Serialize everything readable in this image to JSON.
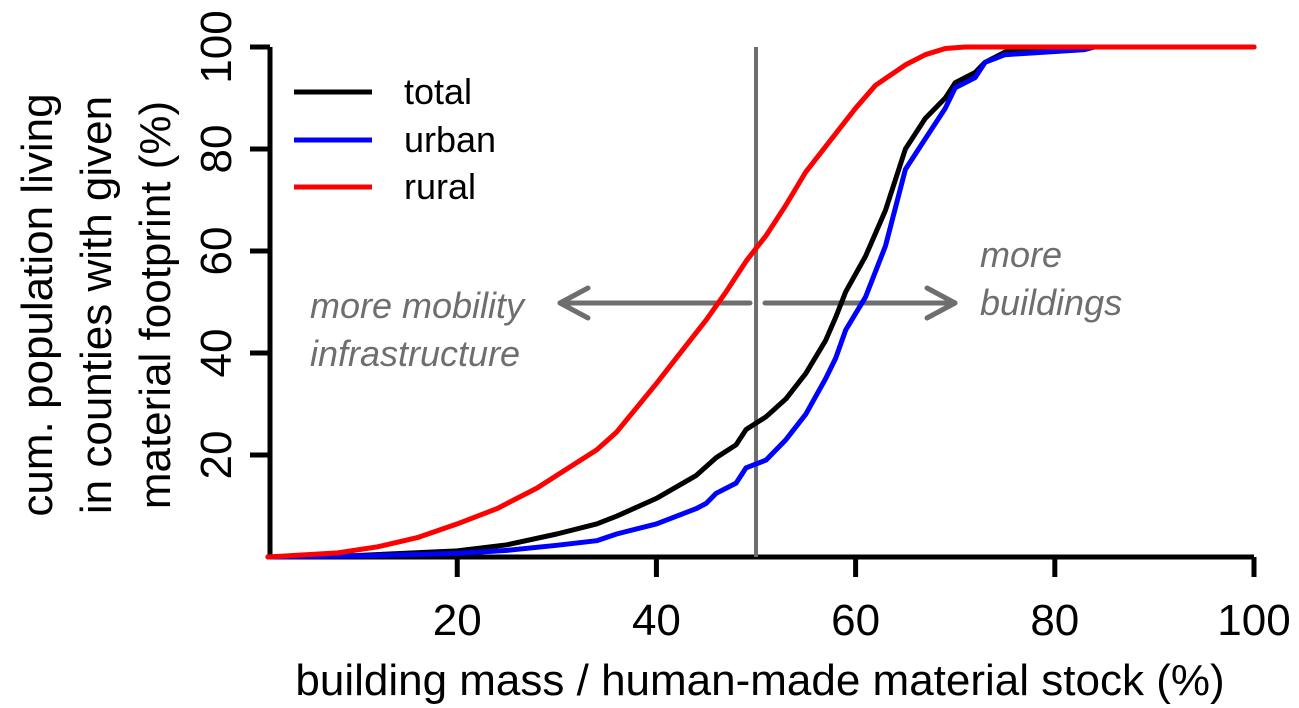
{
  "chart_data": {
    "type": "line",
    "xlabel": "building mass / human-made material stock (%)",
    "ylabel_lines": [
      "cum. population living",
      "in counties with given",
      "material footprint (%)"
    ],
    "xlim": [
      1,
      100
    ],
    "ylim": [
      0,
      100
    ],
    "x_ticks": [
      20,
      40,
      60,
      80,
      100
    ],
    "y_ticks": [
      20,
      40,
      60,
      80,
      100
    ],
    "grid": false,
    "legend_position": "top-left",
    "vline_x": 50,
    "annotations": {
      "left": [
        "more mobility",
        "infrastructure"
      ],
      "right": [
        "more",
        "buildings"
      ]
    },
    "series": [
      {
        "name": "total",
        "color": "#000000",
        "points": [
          [
            1,
            0
          ],
          [
            10,
            0.3
          ],
          [
            20,
            1.2
          ],
          [
            25,
            2.4
          ],
          [
            30,
            4.5
          ],
          [
            34,
            6.5
          ],
          [
            36,
            8
          ],
          [
            40,
            11.5
          ],
          [
            44,
            16
          ],
          [
            46,
            19.5
          ],
          [
            48,
            22
          ],
          [
            49,
            25
          ],
          [
            51,
            27.5
          ],
          [
            53,
            31
          ],
          [
            55,
            36
          ],
          [
            57,
            42.5
          ],
          [
            58,
            47
          ],
          [
            59,
            52
          ],
          [
            61,
            59
          ],
          [
            63,
            68
          ],
          [
            65,
            80
          ],
          [
            67,
            86
          ],
          [
            69,
            90
          ],
          [
            70,
            93
          ],
          [
            72,
            95
          ],
          [
            73,
            97
          ],
          [
            75,
            99
          ],
          [
            83,
            100
          ],
          [
            100,
            100
          ]
        ]
      },
      {
        "name": "urban",
        "color": "#0000ff",
        "points": [
          [
            1,
            0
          ],
          [
            10,
            0.2
          ],
          [
            20,
            0.7
          ],
          [
            25,
            1.3
          ],
          [
            30,
            2.3
          ],
          [
            34,
            3.2
          ],
          [
            36,
            4.5
          ],
          [
            40,
            6.5
          ],
          [
            44,
            9.5
          ],
          [
            45,
            10.5
          ],
          [
            46,
            12.5
          ],
          [
            48,
            14.5
          ],
          [
            49,
            17.5
          ],
          [
            51,
            19
          ],
          [
            53,
            23
          ],
          [
            55,
            28
          ],
          [
            57,
            35
          ],
          [
            58,
            39
          ],
          [
            59,
            44.5
          ],
          [
            61,
            51
          ],
          [
            63,
            61
          ],
          [
            65,
            76
          ],
          [
            67,
            82
          ],
          [
            69,
            88
          ],
          [
            70,
            92
          ],
          [
            72,
            94
          ],
          [
            73,
            97
          ],
          [
            75,
            98.5
          ],
          [
            83,
            99.5
          ],
          [
            84,
            100
          ],
          [
            100,
            100
          ]
        ]
      },
      {
        "name": "rural",
        "color": "#ff0000",
        "points": [
          [
            1,
            0
          ],
          [
            8,
            0.8
          ],
          [
            12,
            2
          ],
          [
            16,
            3.8
          ],
          [
            20,
            6.5
          ],
          [
            24,
            9.5
          ],
          [
            28,
            13.5
          ],
          [
            30,
            16
          ],
          [
            34,
            21
          ],
          [
            36,
            24.5
          ],
          [
            40,
            34
          ],
          [
            42,
            39
          ],
          [
            45,
            46.5
          ],
          [
            47,
            52
          ],
          [
            49,
            58
          ],
          [
            50,
            60.5
          ],
          [
            51,
            63
          ],
          [
            53,
            69
          ],
          [
            55,
            75.5
          ],
          [
            57,
            80.5
          ],
          [
            60,
            88
          ],
          [
            62,
            92.5
          ],
          [
            65,
            96.5
          ],
          [
            67,
            98.5
          ],
          [
            69,
            99.7
          ],
          [
            71,
            100
          ],
          [
            100,
            100
          ]
        ]
      }
    ]
  }
}
